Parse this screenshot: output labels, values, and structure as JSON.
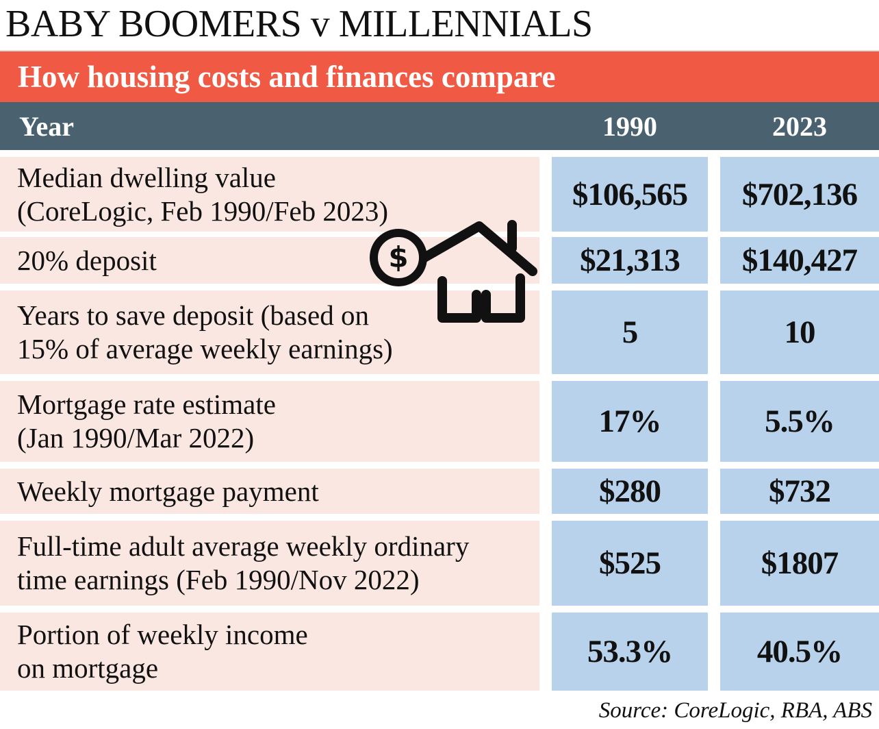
{
  "title": "BABY BOOMERS v MILLENNIALS",
  "subtitle": "How housing costs and finances compare",
  "header": {
    "year_label": "Year",
    "col1": "1990",
    "col2": "2023"
  },
  "rows": [
    {
      "label": "Median dwelling value\n(CoreLogic, Feb 1990/Feb 2023)",
      "v1990": "$106,565",
      "v2023": "$702,136"
    },
    {
      "label": "20% deposit",
      "v1990": "$21,313",
      "v2023": "$140,427"
    },
    {
      "label": "Years to save deposit (based on\n15% of average weekly earnings)",
      "v1990": "5",
      "v2023": "10"
    },
    {
      "label": "Mortgage rate estimate\n(Jan 1990/Mar 2022)",
      "v1990": "17%",
      "v2023": "5.5%"
    },
    {
      "label": "Weekly mortgage payment",
      "v1990": "$280",
      "v2023": "$732"
    },
    {
      "label": "Full-time adult average weekly ordinary\ntime earnings (Feb 1990/Nov 2022)",
      "v1990": "$525",
      "v2023": "$1807"
    },
    {
      "label": "Portion of weekly income\non mortgage",
      "v1990": "53.3%",
      "v2023": "40.5%"
    }
  ],
  "icon": {
    "name": "house-dollar-icon",
    "dollar_sign": "$"
  },
  "source": "Source: CoreLogic, RBA, ABS",
  "colors": {
    "accent_red": "#f05a45",
    "header_slate": "#4a6170",
    "label_bg": "#fae7e2",
    "value_bg": "#b8d2ec"
  }
}
